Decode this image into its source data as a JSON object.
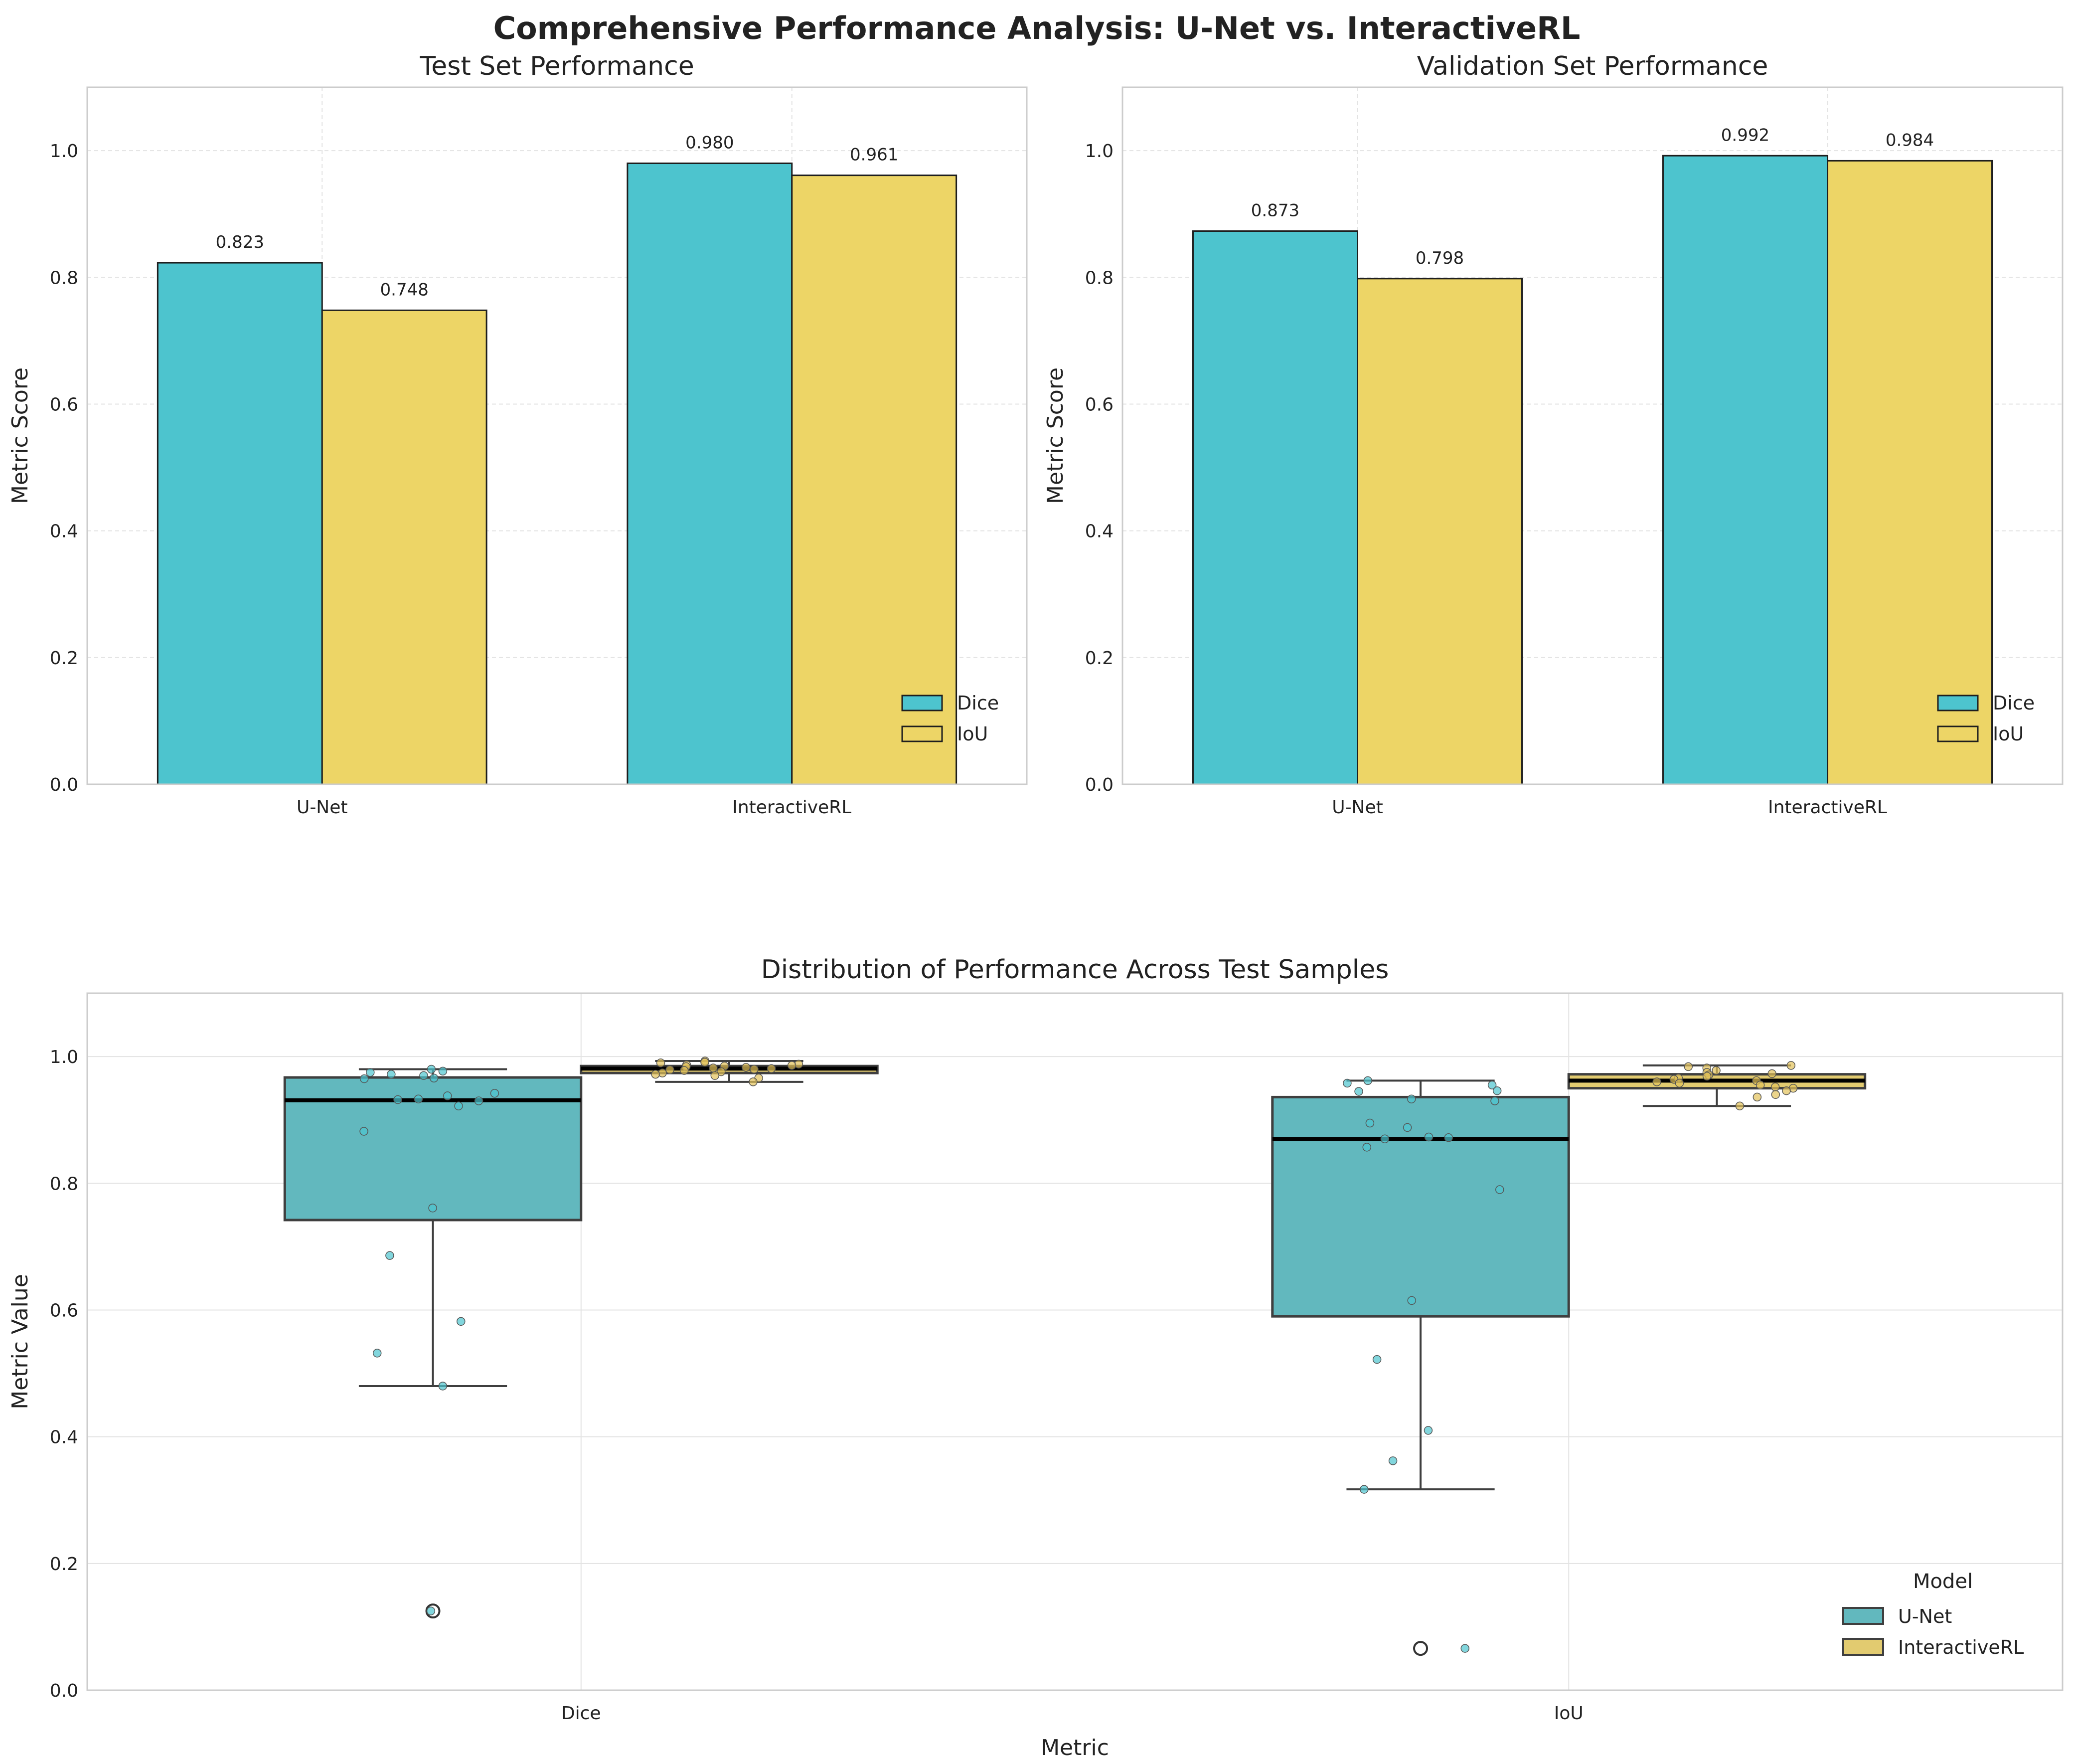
{
  "suptitle": "Comprehensive Performance Analysis: U-Net vs. InteractiveRL",
  "colors": {
    "dice": "#4DC4CE",
    "iou": "#EDD566",
    "box_unet": "#62B8BE",
    "box_irl": "#E2CB70",
    "grid": "#E3E3E3",
    "spine": "#CCCCCC",
    "edge": "#1E1E1E",
    "box_edge": "#3F3F3F",
    "scatter_unet": "#4DC4CE",
    "scatter_irl": "#E2C25A"
  },
  "chart_data": [
    {
      "type": "bar",
      "title": "Test Set Performance",
      "xlabel": "",
      "ylabel": "Metric Score",
      "categories": [
        "U-Net",
        "InteractiveRL"
      ],
      "series": [
        {
          "name": "Dice",
          "values": [
            0.823,
            0.98
          ]
        },
        {
          "name": "IoU",
          "values": [
            0.748,
            0.961
          ]
        }
      ],
      "value_labels": [
        [
          "0.823",
          "0.980"
        ],
        [
          "0.748",
          "0.961"
        ]
      ],
      "ylim": [
        0,
        1.1
      ],
      "yticks": [
        "0.0",
        "0.2",
        "0.4",
        "0.6",
        "0.8",
        "1.0"
      ],
      "grid": true,
      "legend": "lower-right"
    },
    {
      "type": "bar",
      "title": "Validation Set Performance",
      "xlabel": "",
      "ylabel": "Metric Score",
      "categories": [
        "U-Net",
        "InteractiveRL"
      ],
      "series": [
        {
          "name": "Dice",
          "values": [
            0.873,
            0.992
          ]
        },
        {
          "name": "IoU",
          "values": [
            0.798,
            0.984
          ]
        }
      ],
      "value_labels": [
        [
          "0.873",
          "0.992"
        ],
        [
          "0.798",
          "0.984"
        ]
      ],
      "ylim": [
        0,
        1.1
      ],
      "yticks": [
        "0.0",
        "0.2",
        "0.4",
        "0.6",
        "0.8",
        "1.0"
      ],
      "grid": true,
      "legend": "lower-right"
    },
    {
      "type": "box",
      "title": "Distribution of Performance Across Test Samples",
      "xlabel": "Metric",
      "ylabel": "Metric Value",
      "categories": [
        "Dice",
        "IoU"
      ],
      "ylim": [
        0,
        1.1
      ],
      "yticks": [
        "0.0",
        "0.2",
        "0.4",
        "0.6",
        "0.8",
        "1.0"
      ],
      "grid": true,
      "legend_title": "Model",
      "legend": "lower-right",
      "series": [
        {
          "name": "U-Net",
          "boxes": [
            {
              "q1": 0.742,
              "median": 0.931,
              "q3": 0.967,
              "whisker_low": 0.48,
              "whisker_high": 0.98,
              "outliers": [
                0.125
              ]
            },
            {
              "q1": 0.59,
              "median": 0.87,
              "q3": 0.936,
              "whisker_low": 0.317,
              "whisker_high": 0.962,
              "outliers": [
                0.066
              ]
            }
          ],
          "points": [
            [
              0.98,
              0.977,
              0.975,
              0.972,
              0.97,
              0.966,
              0.965,
              0.942,
              0.938,
              0.933,
              0.932,
              0.93,
              0.922,
              0.882,
              0.761,
              0.686,
              0.582,
              0.532,
              0.48,
              0.125
            ],
            [
              0.962,
              0.958,
              0.955,
              0.946,
              0.945,
              0.933,
              0.93,
              0.895,
              0.888,
              0.873,
              0.872,
              0.87,
              0.857,
              0.79,
              0.615,
              0.522,
              0.41,
              0.362,
              0.317,
              0.066
            ]
          ]
        },
        {
          "name": "InteractiveRL",
          "boxes": [
            {
              "q1": 0.974,
              "median": 0.981,
              "q3": 0.985,
              "whisker_low": 0.96,
              "whisker_high": 0.993,
              "outliers": []
            },
            {
              "q1": 0.95,
              "median": 0.962,
              "q3": 0.972,
              "whisker_low": 0.922,
              "whisker_high": 0.986,
              "outliers": []
            }
          ],
          "points": [
            [
              0.993,
              0.991,
              0.99,
              0.988,
              0.987,
              0.986,
              0.985,
              0.984,
              0.983,
              0.982,
              0.981,
              0.98,
              0.979,
              0.978,
              0.976,
              0.974,
              0.972,
              0.97,
              0.966,
              0.96
            ],
            [
              0.986,
              0.984,
              0.982,
              0.978,
              0.975,
              0.973,
              0.971,
              0.969,
              0.966,
              0.964,
              0.962,
              0.96,
              0.958,
              0.955,
              0.952,
              0.95,
              0.946,
              0.94,
              0.936,
              0.922
            ]
          ]
        }
      ]
    }
  ]
}
